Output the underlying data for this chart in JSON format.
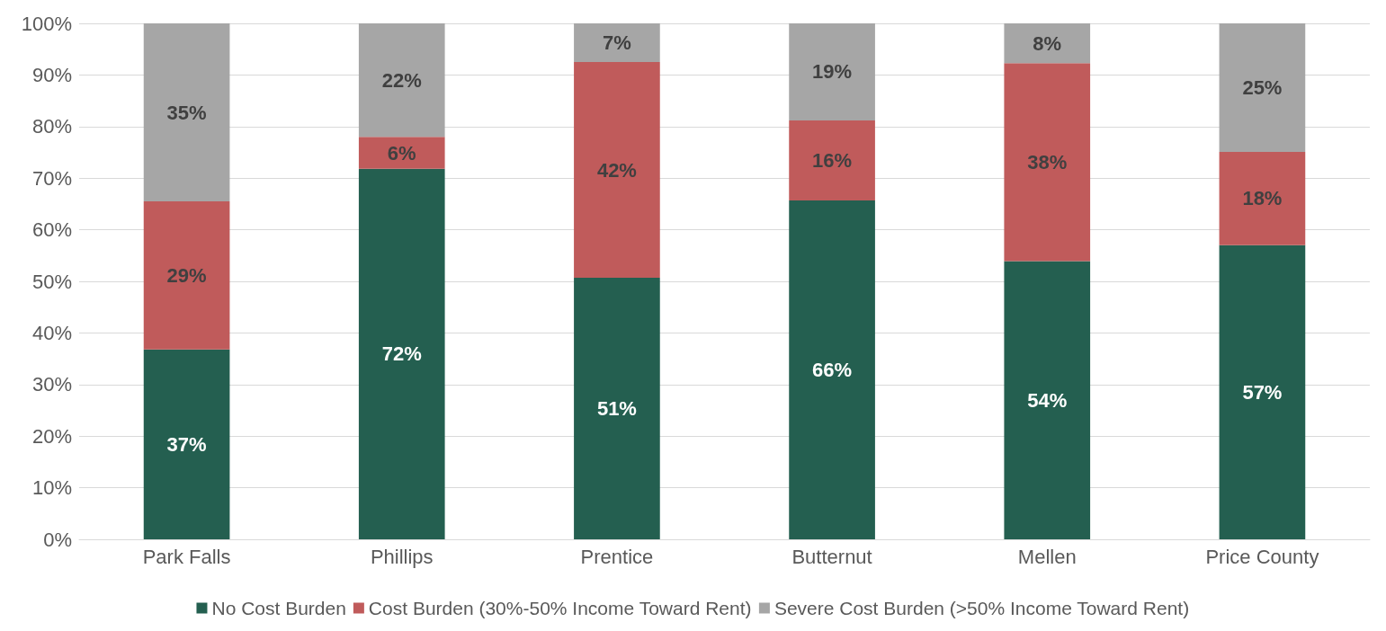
{
  "chart_data": {
    "type": "bar",
    "stacked": true,
    "categories": [
      "Park Falls",
      "Phillips",
      "Prentice",
      "Butternut",
      "Mellen",
      "Price County"
    ],
    "series": [
      {
        "name": "No Cost Burden",
        "color": "#245f50",
        "values": [
          36.8,
          71.8,
          50.7,
          65.7,
          53.9,
          57.0
        ],
        "value_labels": [
          "37%",
          "72%",
          "51%",
          "66%",
          "54%",
          "57%"
        ]
      },
      {
        "name": "Cost Burden (30%-50% Income Toward Rent)",
        "color": "#c05b5b",
        "values": [
          28.7,
          6.2,
          41.8,
          15.5,
          38.4,
          18.1
        ],
        "value_labels": [
          "29%",
          "6%",
          "42%",
          "16%",
          "38%",
          "18%"
        ]
      },
      {
        "name": "Severe Cost Burden (>50% Income Toward Rent)",
        "color": "#a6a6a6",
        "values": [
          34.5,
          22.0,
          7.5,
          18.8,
          7.7,
          24.9
        ],
        "value_labels": [
          "35%",
          "22%",
          "7%",
          "19%",
          "8%",
          "25%"
        ]
      }
    ],
    "ylim": [
      0,
      100
    ],
    "yticks": [
      {
        "value": 0,
        "label": "0%"
      },
      {
        "value": 10,
        "label": "10%"
      },
      {
        "value": 20,
        "label": "20%"
      },
      {
        "value": 30,
        "label": "30%"
      },
      {
        "value": 40,
        "label": "40%"
      },
      {
        "value": 50,
        "label": "50%"
      },
      {
        "value": 60,
        "label": "60%"
      },
      {
        "value": 70,
        "label": "70%"
      },
      {
        "value": 80,
        "label": "80%"
      },
      {
        "value": 90,
        "label": "90%"
      },
      {
        "value": 100,
        "label": "100%"
      }
    ],
    "grid": "y",
    "legend": "bottom"
  }
}
